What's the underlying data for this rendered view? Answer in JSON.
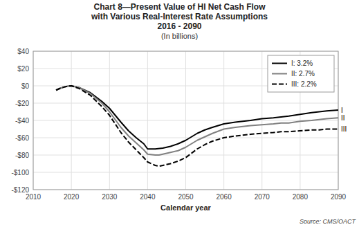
{
  "chart_data": {
    "type": "line",
    "title": [
      "Chart 8—Present Value of HI Net Cash Flow",
      "with Various Real-Interest Rate Assumptions",
      "2016 - 2090"
    ],
    "subtitle": "(In billions)",
    "x_label": "Calendar year",
    "annotations": [
      {
        "text": "Source: CMS/OACT"
      },
      {
        "text": "I",
        "series": 0
      },
      {
        "text": "II",
        "series": 1
      },
      {
        "text": "III",
        "series": 2
      }
    ],
    "xlim": [
      2010,
      2090
    ],
    "ylim": [
      -120,
      40
    ],
    "xticks": [
      2010,
      2020,
      2030,
      2040,
      2050,
      2060,
      2070,
      2080,
      2090
    ],
    "yticks": [
      {
        "value": 40,
        "label": "$40"
      },
      {
        "value": 20,
        "label": "$20"
      },
      {
        "value": 0,
        "label": "$0"
      },
      {
        "value": -20,
        "label": "-$20"
      },
      {
        "value": -40,
        "label": "-$40"
      },
      {
        "value": -60,
        "label": "-$60"
      },
      {
        "value": -80,
        "label": "-$80"
      },
      {
        "value": -100,
        "label": "-$100"
      },
      {
        "value": -120,
        "label": "-$120"
      }
    ],
    "grid": true,
    "legend": "upper right",
    "series": [
      {
        "name": "I:  3.2%",
        "color": "#000000",
        "line_style": "solid",
        "x": [
          2016,
          2017,
          2018,
          2019,
          2020,
          2022,
          2025,
          2028,
          2030,
          2033,
          2035,
          2037,
          2039,
          2040,
          2042,
          2044,
          2046,
          2048,
          2050,
          2053,
          2055,
          2057,
          2060,
          2063,
          2065,
          2067,
          2070,
          2073,
          2075,
          2077,
          2080,
          2083,
          2085,
          2087,
          2090
        ],
        "values": [
          -5,
          -3,
          -1.5,
          -0.5,
          0,
          -2,
          -8,
          -18,
          -26,
          -42,
          -52,
          -60,
          -67,
          -73,
          -73,
          -72,
          -70,
          -67,
          -63,
          -55,
          -51,
          -48,
          -44,
          -42,
          -41,
          -40,
          -38,
          -37,
          -36,
          -35,
          -33,
          -31,
          -30,
          -29,
          -28
        ]
      },
      {
        "name": "II:  2.7%",
        "color": "#808080",
        "line_style": "solid",
        "x": [
          2016,
          2017,
          2018,
          2019,
          2020,
          2022,
          2025,
          2028,
          2030,
          2033,
          2035,
          2037,
          2039,
          2040,
          2042,
          2043,
          2044,
          2046,
          2048,
          2050,
          2053,
          2055,
          2057,
          2060,
          2063,
          2065,
          2067,
          2070,
          2073,
          2075,
          2077,
          2080,
          2083,
          2085,
          2087,
          2090
        ],
        "values": [
          -5,
          -3,
          -1.5,
          -0.5,
          0,
          -2,
          -9,
          -20,
          -30,
          -48,
          -58,
          -66,
          -74,
          -79,
          -80,
          -80,
          -79,
          -77,
          -75,
          -71,
          -63,
          -59,
          -55,
          -50,
          -48,
          -47,
          -46,
          -45,
          -44,
          -43,
          -43,
          -41,
          -40,
          -39,
          -38,
          -37
        ]
      },
      {
        "name": "III:  2.2%",
        "color": "#000000",
        "line_style": "dashed",
        "x": [
          2016,
          2017,
          2018,
          2019,
          2020,
          2022,
          2025,
          2028,
          2030,
          2033,
          2035,
          2037,
          2039,
          2040,
          2042,
          2043,
          2044,
          2046,
          2048,
          2050,
          2053,
          2055,
          2057,
          2060,
          2063,
          2065,
          2067,
          2070,
          2073,
          2075,
          2077,
          2080,
          2083,
          2085,
          2087,
          2090
        ],
        "values": [
          -5,
          -3,
          -1.5,
          -0.5,
          0,
          -3,
          -11,
          -24,
          -34,
          -54,
          -65,
          -74,
          -83,
          -88,
          -92,
          -93,
          -92,
          -90,
          -87,
          -83,
          -73,
          -68,
          -64,
          -60,
          -58,
          -57,
          -56,
          -55,
          -54,
          -53,
          -53,
          -52,
          -51,
          -51,
          -50,
          -50
        ]
      }
    ]
  }
}
